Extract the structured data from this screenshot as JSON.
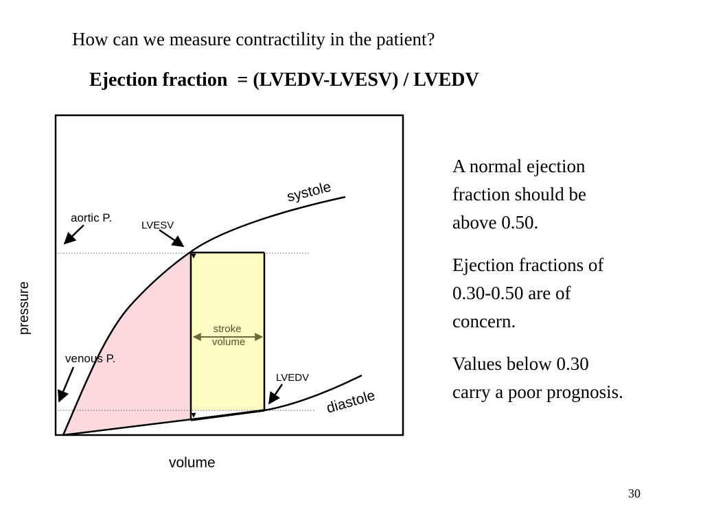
{
  "slide": {
    "question": "How can we measure contractility in the patient?",
    "formula": "Ejection fraction  = (LVEDV-LVESV) / LVEDV",
    "side_paragraphs": [
      "A normal ejection fraction should be above 0.50.",
      "Ejection fractions of  0.30-0.50 are of concern.",
      "Values below 0.30 carry a poor prognosis."
    ],
    "page_number": "30"
  },
  "diagram": {
    "labels": {
      "systole": "systole",
      "diastole": "diastole",
      "aortic": "aortic P.",
      "venous": "venous P.",
      "lvesv": "LVESV",
      "lvedv": "LVEDV",
      "stroke_line1": "stroke",
      "stroke_line2": "volume",
      "y_axis": "pressure",
      "x_axis": "volume"
    },
    "colors": {
      "ejected_region": "#fbd9dc",
      "stroke_volume_region": "#fdfdc4"
    }
  }
}
